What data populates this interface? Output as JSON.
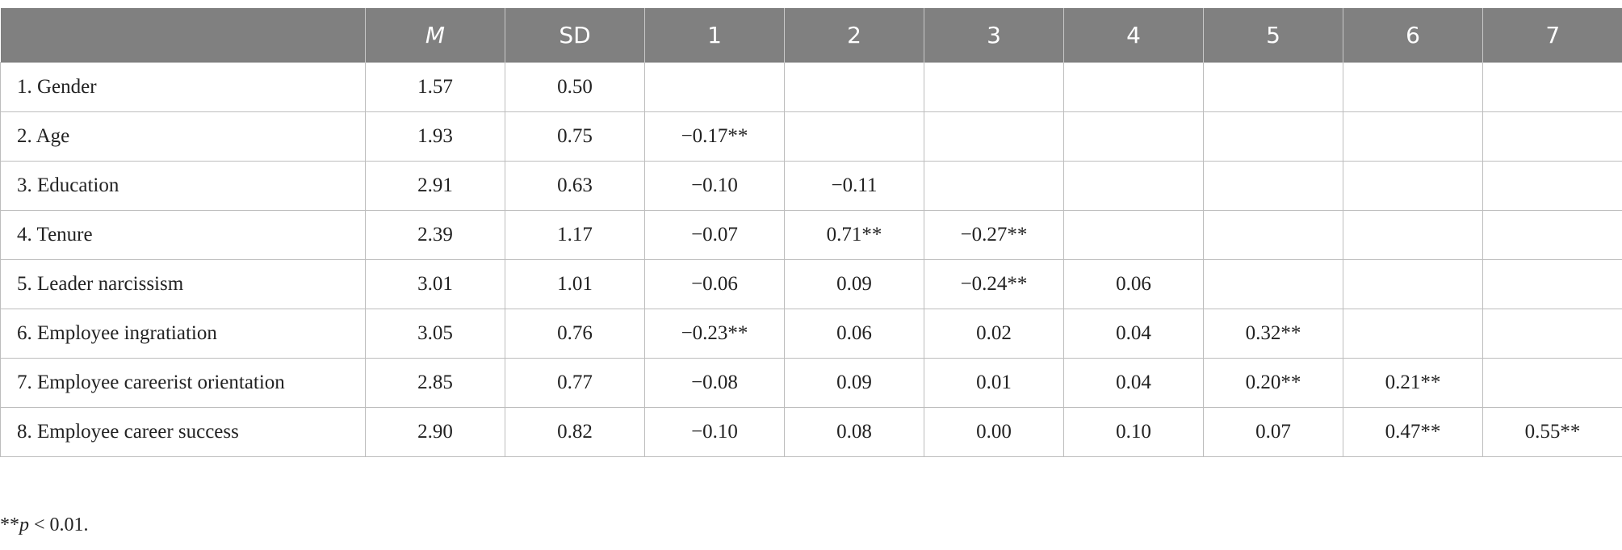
{
  "table": {
    "header": [
      "",
      "M",
      "SD",
      "1",
      "2",
      "3",
      "4",
      "5",
      "6",
      "7"
    ],
    "rows": [
      {
        "label": "1. Gender",
        "values": [
          "1.57",
          "0.50"
        ]
      },
      {
        "label": "2. Age",
        "values": [
          "1.93",
          "0.75",
          "−0.17**"
        ]
      },
      {
        "label": "3. Education",
        "values": [
          "2.91",
          "0.63",
          "−0.10",
          "−0.11"
        ]
      },
      {
        "label": "4. Tenure",
        "values": [
          "2.39",
          "1.17",
          "−0.07",
          "0.71**",
          "−0.27**"
        ]
      },
      {
        "label": "5. Leader narcissism",
        "values": [
          "3.01",
          "1.01",
          "−0.06",
          "0.09",
          "−0.24**",
          "0.06"
        ]
      },
      {
        "label": "6. Employee ingratiation",
        "values": [
          "3.05",
          "0.76",
          "−0.23**",
          "0.06",
          "0.02",
          "0.04",
          "0.32**"
        ]
      },
      {
        "label": "7. Employee careerist orientation",
        "values": [
          "2.85",
          "0.77",
          "−0.08",
          "0.09",
          "0.01",
          "0.04",
          "0.20**",
          "0.21**"
        ]
      },
      {
        "label": "8. Employee career success",
        "values": [
          "2.90",
          "0.82",
          "−0.10",
          "0.08",
          "0.00",
          "0.10",
          "0.07",
          "0.47**",
          "0.55**"
        ]
      }
    ]
  },
  "footnote": {
    "marks": "**",
    "symbol": "p",
    "text": " < 0.01."
  }
}
